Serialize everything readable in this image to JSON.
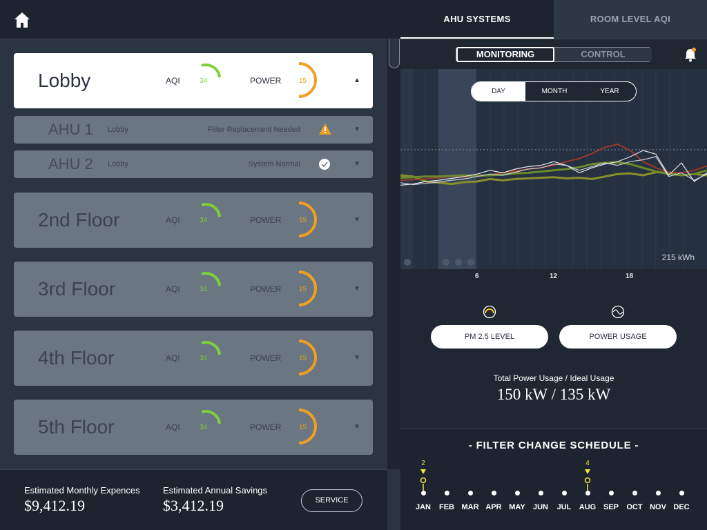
{
  "header": {
    "home_icon": "home-icon",
    "tabs": [
      {
        "label": "AHU SYSTEMS"
      },
      {
        "label": "ROOM LEVEL AQI"
      }
    ]
  },
  "rooms": [
    {
      "name": "Lobby",
      "aqi_label": "AQI",
      "aqi": "34",
      "power_label": "POWER",
      "power": "15",
      "caret": "▲"
    },
    {
      "name": "2nd Floor",
      "aqi_label": "AQI",
      "aqi": "34",
      "power_label": "POWER",
      "power": "15",
      "caret": "▼"
    },
    {
      "name": "3rd Floor",
      "aqi_label": "AQI",
      "aqi": "34",
      "power_label": "POWER",
      "power": "15",
      "caret": "▼"
    },
    {
      "name": "4th Floor",
      "aqi_label": "AQI",
      "aqi": "34",
      "power_label": "POWER",
      "power": "15",
      "caret": "▼"
    },
    {
      "name": "5th Floor",
      "aqi_label": "AQI",
      "aqi": "34",
      "power_label": "POWER",
      "power": "15",
      "caret": "▼"
    }
  ],
  "ahus": [
    {
      "name": "AHU 1",
      "location": "Lobby",
      "status": "Filter Replacement Needed",
      "status_icon": "warning-icon",
      "caret": "▼"
    },
    {
      "name": "AHU 2",
      "location": "Lobby",
      "status": "System Normal",
      "status_icon": "check-icon",
      "caret": "▼"
    }
  ],
  "footer": {
    "monthly_label": "Estimated Monthly Expences",
    "monthly_value": "$9,412.19",
    "annual_label": "Estimated Annual Savings",
    "annual_value": "$3,412.19",
    "service_label": "SERVICE"
  },
  "right": {
    "monitoring_label": "MONITORING",
    "control_label": "CONTROL",
    "range_options": [
      "DAY",
      "MONTH",
      "YEAR"
    ],
    "kwh_label": "215 kWh",
    "x_ticks": [
      "6",
      "12",
      "18"
    ],
    "pm_label": "PM 2.5 LEVEL",
    "power_label": "POWER USAGE",
    "total_label": "Total Power Usage / Ideal Usage",
    "total_value": "150 kW / 135 kW",
    "schedule_title": "-  FILTER CHANGE SCHEDULE  -",
    "months": [
      "JAN",
      "FEB",
      "MAR",
      "APR",
      "MAY",
      "JUN",
      "JUL",
      "AUG",
      "SEP",
      "OCT",
      "NOV",
      "DEC"
    ],
    "markers": [
      {
        "month": "JAN",
        "label": "2"
      },
      {
        "month": "AUG",
        "label": "4"
      }
    ]
  },
  "colors": {
    "aqi": "#7fcf3a",
    "power": "#f0a020",
    "accent": "#f5e63a"
  },
  "chart_data": {
    "type": "line",
    "x": [
      0,
      1,
      2,
      3,
      4,
      5,
      6,
      7,
      8,
      9,
      10,
      11,
      12,
      13,
      14,
      15,
      16,
      17,
      18,
      19,
      20,
      21,
      22,
      23,
      24
    ],
    "series": [
      {
        "values": [
          60,
          62,
          70,
          72,
          74,
          71,
          70,
          66,
          68,
          66,
          65,
          64,
          63,
          65,
          64,
          66,
          62,
          58,
          57,
          60,
          55,
          56,
          60,
          58,
          60
        ]
      },
      {
        "values": [
          68,
          67,
          66,
          64,
          62,
          63,
          60,
          59,
          56,
          53,
          50,
          48,
          44,
          38,
          33,
          25,
          15,
          10,
          20,
          38,
          48,
          55,
          56,
          52,
          45
        ]
      },
      {
        "values": [
          64,
          63,
          62,
          62,
          61,
          60,
          61,
          60,
          59,
          57,
          56,
          54,
          52,
          50,
          47,
          42,
          40,
          39,
          42,
          48,
          54,
          58,
          60,
          58,
          52
        ]
      },
      {
        "values": [
          72,
          75,
          73,
          71,
          68,
          66,
          62,
          58,
          60,
          55,
          50,
          48,
          42,
          44,
          52,
          46,
          40,
          44,
          38,
          35,
          30,
          62,
          56,
          68,
          58
        ]
      },
      {
        "values": [
          76,
          74,
          70,
          68,
          65,
          62,
          58,
          52,
          56,
          50,
          46,
          44,
          38,
          44,
          56,
          48,
          42,
          38,
          30,
          20,
          26,
          60,
          40,
          70,
          56
        ]
      }
    ]
  }
}
